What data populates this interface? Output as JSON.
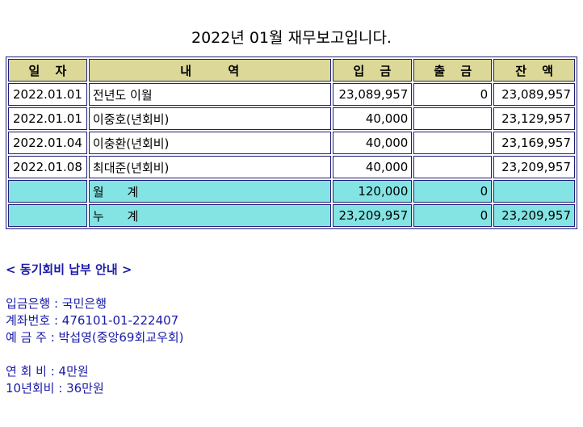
{
  "title": "2022년 01월 재무보고입니다.",
  "table": {
    "header": [
      "일 자",
      "내 역",
      "입 금",
      "출 금",
      "잔 액"
    ],
    "rows": [
      [
        "2022.01.01",
        "전년도 이월",
        "23,089,957",
        "0",
        "23,089,957"
      ],
      [
        "2022.01.01",
        "이중호(년회비)",
        "40,000",
        null,
        "23,129,957"
      ],
      [
        "2022.01.04",
        "이충환(년회비)",
        "40,000",
        null,
        "23,169,957"
      ],
      [
        "2022.01.08",
        "최대준(년회비)",
        "40,000",
        null,
        "23,209,957"
      ]
    ],
    "totals": [
      [
        null,
        "월 계",
        "120,000",
        "0",
        null
      ],
      [
        null,
        "누 계",
        "23,209,957",
        "0",
        "23,209,957"
      ]
    ]
  },
  "notice": {
    "heading": "< 동기회비 납부 안내 >",
    "account": [
      "입금은행 : 국민은행",
      "계좌번호 : 476101-01-222407",
      "예 금 주 : 박섭영(중앙69회교우회)"
    ],
    "fees": [
      "연 회 비 : 4만원",
      "10년회비 : 36만원"
    ]
  }
}
